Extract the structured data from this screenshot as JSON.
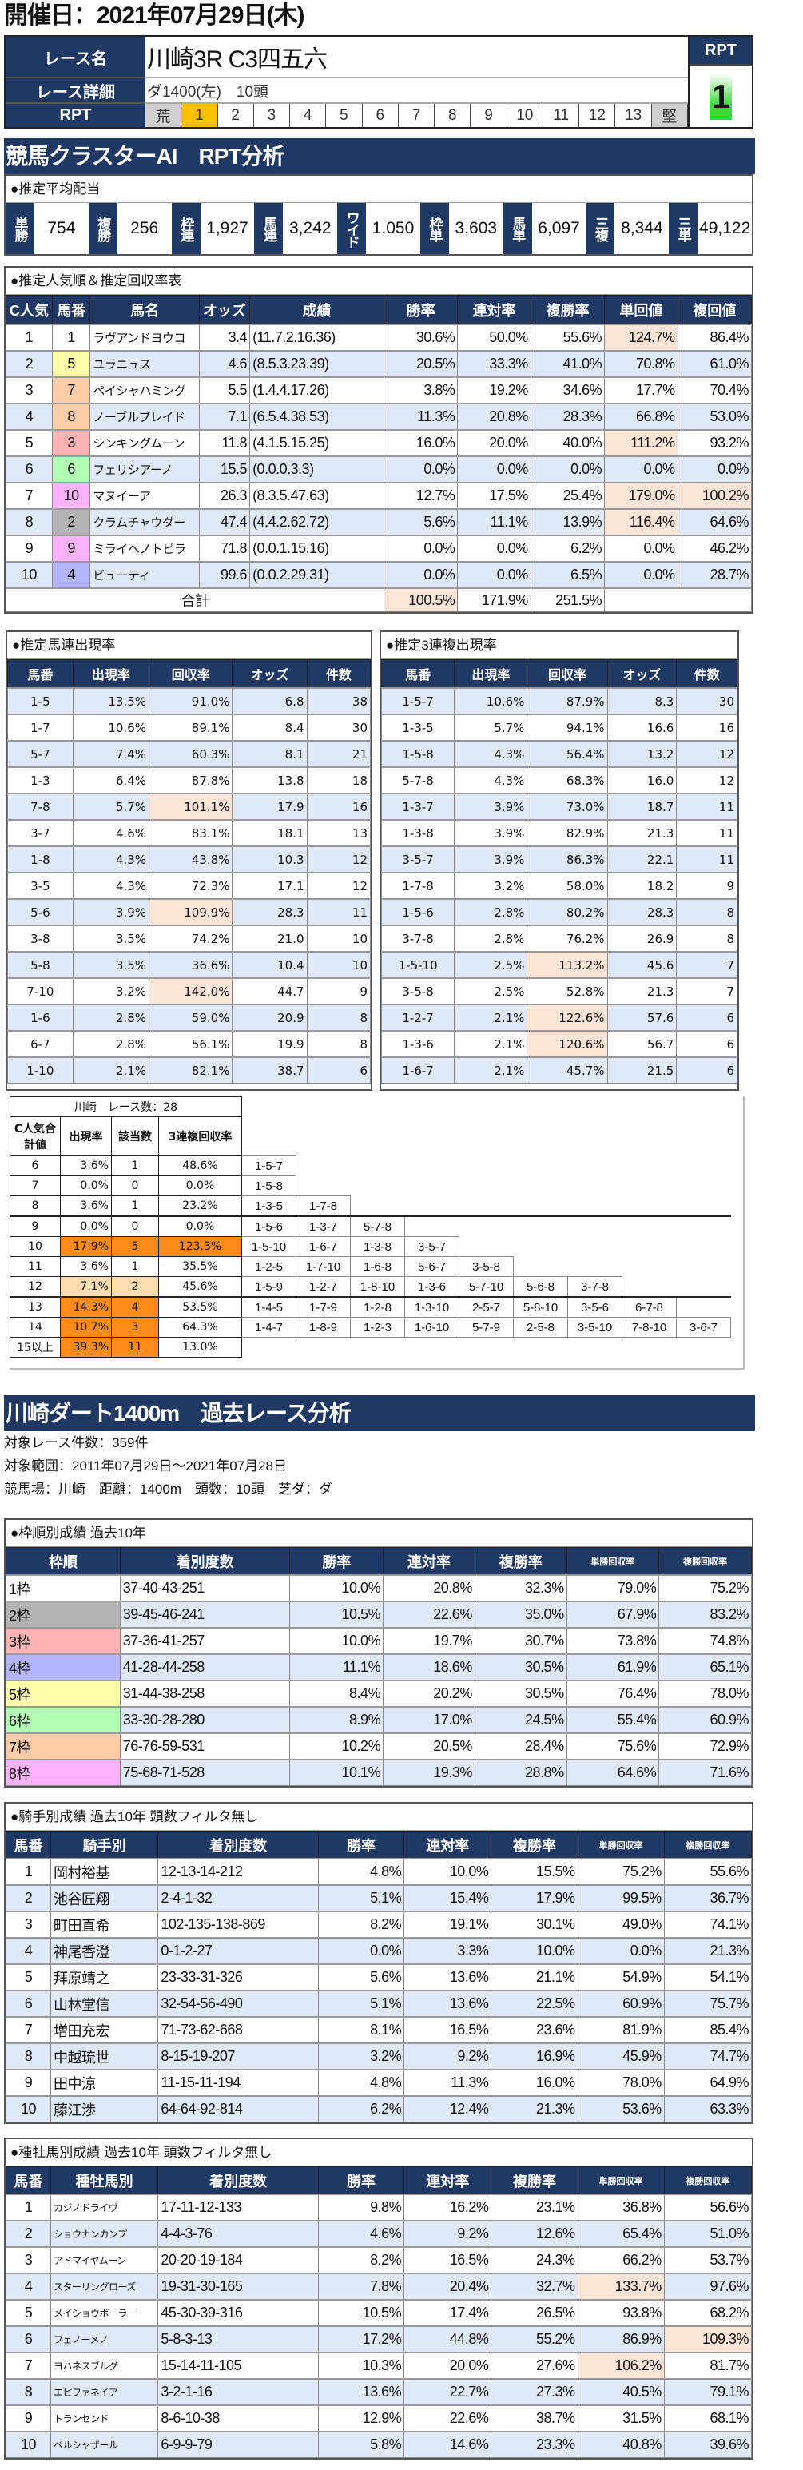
{
  "header": {
    "date_title": "開催日：2021年07月29日(木)"
  },
  "race": {
    "name_label": "レース名",
    "name": "川崎3R C3四五六",
    "detail_label": "レース詳細",
    "detail": "ダ1400(左)　10頭",
    "rpt_label": "RPT",
    "rpt_scale": [
      "荒",
      "1",
      "2",
      "3",
      "4",
      "5",
      "6",
      "7",
      "8",
      "9",
      "10",
      "11",
      "12",
      "13",
      "堅"
    ],
    "rpt_selected": "1",
    "rpt_value_label": "RPT",
    "rpt_value": "1"
  },
  "colors": {
    "navy": "#203864",
    "highlight": "#fce4d6",
    "orange": "#ff8c1a",
    "rpt_selected": "#ffc000",
    "rpt_green": "#39d839"
  },
  "frame_colors": {
    "1": "#ffffff",
    "2": "#b3b3b3",
    "3": "#ffb3b3",
    "4": "#b3b3ff",
    "5": "#ffffab",
    "6": "#b3ffb3",
    "7": "#ffcca8",
    "8": "#ffb3ff"
  },
  "horse_frames": {
    "1": "1",
    "2": "2",
    "3": "3",
    "4": "4",
    "5": "5",
    "6": "6",
    "7": "7",
    "8": "7",
    "9": "8",
    "10": "8"
  },
  "ai_section": {
    "title": "競馬クラスターAI　RPT分析"
  },
  "payout": {
    "title": "●推定平均配当",
    "items": [
      {
        "label": "単勝",
        "value": "754"
      },
      {
        "label": "複勝",
        "value": "256"
      },
      {
        "label": "枠連",
        "value": "1,927"
      },
      {
        "label": "馬連",
        "value": "3,242"
      },
      {
        "label": "ワイド",
        "value": "1,050"
      },
      {
        "label": "枠単",
        "value": "3,603"
      },
      {
        "label": "馬単",
        "value": "6,097"
      },
      {
        "label": "三複",
        "value": "8,344"
      },
      {
        "label": "三単",
        "value": "49,122"
      }
    ]
  },
  "popularity": {
    "title": "●推定人気順＆推定回収率表",
    "columns": [
      "C人気",
      "馬番",
      "馬名",
      "オッズ",
      "成績",
      "勝率",
      "連対率",
      "複勝率",
      "単回値",
      "複回値"
    ],
    "rows": [
      [
        "1",
        "1",
        "ラヴアンドヨウコ",
        "3.4",
        "(11.7.2.16.36)",
        "30.6%",
        "50.0%",
        "55.6%",
        "124.7%",
        "86.4%"
      ],
      [
        "2",
        "5",
        "ユラニュス",
        "4.6",
        "(8.5.3.23.39)",
        "20.5%",
        "33.3%",
        "41.0%",
        "70.8%",
        "61.0%"
      ],
      [
        "3",
        "7",
        "ペイシャハミング",
        "5.5",
        "(1.4.4.17.26)",
        "3.8%",
        "19.2%",
        "34.6%",
        "17.7%",
        "70.4%"
      ],
      [
        "4",
        "8",
        "ノーブルブレイド",
        "7.1",
        "(6.5.4.38.53)",
        "11.3%",
        "20.8%",
        "28.3%",
        "66.8%",
        "53.0%"
      ],
      [
        "5",
        "3",
        "シンキングムーン",
        "11.8",
        "(4.1.5.15.25)",
        "16.0%",
        "20.0%",
        "40.0%",
        "111.2%",
        "93.2%"
      ],
      [
        "6",
        "6",
        "フェリシアーノ",
        "15.5",
        "(0.0.0.3.3)",
        "0.0%",
        "0.0%",
        "0.0%",
        "0.0%",
        "0.0%"
      ],
      [
        "7",
        "10",
        "マヌイーア",
        "26.3",
        "(8.3.5.47.63)",
        "12.7%",
        "17.5%",
        "25.4%",
        "179.0%",
        "100.2%"
      ],
      [
        "8",
        "2",
        "クラムチャウダー",
        "47.4",
        "(4.4.2.62.72)",
        "5.6%",
        "11.1%",
        "13.9%",
        "116.4%",
        "64.6%"
      ],
      [
        "9",
        "9",
        "ミライヘノトビラ",
        "71.8",
        "(0.0.1.15.16)",
        "0.0%",
        "0.0%",
        "6.2%",
        "0.0%",
        "46.2%"
      ],
      [
        "10",
        "4",
        "ビューティ",
        "99.6",
        "(0.0.2.29.31)",
        "0.0%",
        "0.0%",
        "6.5%",
        "0.0%",
        "28.7%"
      ]
    ],
    "total": {
      "label": "合計",
      "win": "100.5%",
      "quinella": "171.9%",
      "show": "251.5%"
    }
  },
  "umaren": {
    "title": "●推定馬連出現率",
    "columns": [
      "馬番",
      "出現率",
      "回収率",
      "オッズ",
      "件数"
    ],
    "rows": [
      [
        "1-5",
        "13.5%",
        "91.0%",
        "6.8",
        "38"
      ],
      [
        "1-7",
        "10.6%",
        "89.1%",
        "8.4",
        "30"
      ],
      [
        "5-7",
        "7.4%",
        "60.3%",
        "8.1",
        "21"
      ],
      [
        "1-3",
        "6.4%",
        "87.8%",
        "13.8",
        "18"
      ],
      [
        "7-8",
        "5.7%",
        "101.1%",
        "17.9",
        "16"
      ],
      [
        "3-7",
        "4.6%",
        "83.1%",
        "18.1",
        "13"
      ],
      [
        "1-8",
        "4.3%",
        "43.8%",
        "10.3",
        "12"
      ],
      [
        "3-5",
        "4.3%",
        "72.3%",
        "17.1",
        "12"
      ],
      [
        "5-6",
        "3.9%",
        "109.9%",
        "28.3",
        "11"
      ],
      [
        "3-8",
        "3.5%",
        "74.2%",
        "21.0",
        "10"
      ],
      [
        "5-8",
        "3.5%",
        "36.6%",
        "10.4",
        "10"
      ],
      [
        "7-10",
        "3.2%",
        "142.0%",
        "44.7",
        "9"
      ],
      [
        "1-6",
        "2.8%",
        "59.0%",
        "20.9",
        "8"
      ],
      [
        "6-7",
        "2.8%",
        "56.1%",
        "19.9",
        "8"
      ],
      [
        "1-10",
        "2.1%",
        "82.1%",
        "38.7",
        "6"
      ]
    ]
  },
  "sanrenpuku": {
    "title": "●推定3連複出現率",
    "columns": [
      "馬番",
      "出現率",
      "回収率",
      "オッズ",
      "件数"
    ],
    "rows": [
      [
        "1-5-7",
        "10.6%",
        "87.9%",
        "8.3",
        "30"
      ],
      [
        "1-3-5",
        "5.7%",
        "94.1%",
        "16.6",
        "16"
      ],
      [
        "1-5-8",
        "4.3%",
        "56.4%",
        "13.2",
        "12"
      ],
      [
        "5-7-8",
        "4.3%",
        "68.3%",
        "16.0",
        "12"
      ],
      [
        "1-3-7",
        "3.9%",
        "73.0%",
        "18.7",
        "11"
      ],
      [
        "1-3-8",
        "3.9%",
        "82.9%",
        "21.3",
        "11"
      ],
      [
        "3-5-7",
        "3.9%",
        "86.3%",
        "22.1",
        "11"
      ],
      [
        "1-7-8",
        "3.2%",
        "58.0%",
        "18.2",
        "9"
      ],
      [
        "1-5-6",
        "2.8%",
        "80.2%",
        "28.3",
        "8"
      ],
      [
        "3-7-8",
        "2.8%",
        "76.2%",
        "26.9",
        "8"
      ],
      [
        "1-5-10",
        "2.5%",
        "113.2%",
        "45.6",
        "7"
      ],
      [
        "3-5-8",
        "2.5%",
        "52.8%",
        "21.3",
        "7"
      ],
      [
        "1-2-7",
        "2.1%",
        "122.6%",
        "57.6",
        "6"
      ],
      [
        "1-3-6",
        "2.1%",
        "120.6%",
        "56.7",
        "6"
      ],
      [
        "1-6-7",
        "2.1%",
        "45.7%",
        "21.5",
        "6"
      ]
    ]
  },
  "cluster": {
    "title": "川崎　レース数：28",
    "columns": [
      "C人気合計値",
      "出現率",
      "該当数",
      "3連複回収率"
    ],
    "rows": [
      {
        "sum": "6",
        "rate": "3.6%",
        "count": "1",
        "ret": "48.6%",
        "hl": "",
        "hl_ret": false,
        "combos": [
          "1-5-7"
        ]
      },
      {
        "sum": "7",
        "rate": "0.0%",
        "count": "0",
        "ret": "0.0%",
        "hl": "",
        "hl_ret": false,
        "combos": [
          "1-5-8"
        ]
      },
      {
        "sum": "8",
        "rate": "3.6%",
        "count": "1",
        "ret": "23.2%",
        "hl": "",
        "hl_ret": false,
        "combos": [
          "1-3-5",
          "1-7-8"
        ]
      },
      {
        "sum": "9",
        "rate": "0.0%",
        "count": "0",
        "ret": "0.0%",
        "hl": "",
        "hl_ret": false,
        "combos": [
          "1-5-6",
          "1-3-7",
          "5-7-8"
        ]
      },
      {
        "sum": "10",
        "rate": "17.9%",
        "count": "5",
        "ret": "123.3%",
        "hl": "strong",
        "hl_ret": true,
        "combos": [
          "1-5-10",
          "1-6-7",
          "1-3-8",
          "3-5-7"
        ]
      },
      {
        "sum": "11",
        "rate": "3.6%",
        "count": "1",
        "ret": "35.5%",
        "hl": "",
        "hl_ret": false,
        "combos": [
          "1-2-5",
          "1-7-10",
          "1-6-8",
          "5-6-7",
          "3-5-8"
        ]
      },
      {
        "sum": "12",
        "rate": "7.1%",
        "count": "2",
        "ret": "45.6%",
        "hl": "light",
        "hl_ret": false,
        "combos": [
          "1-5-9",
          "1-2-7",
          "1-8-10",
          "1-3-6",
          "5-7-10",
          "5-6-8",
          "3-7-8"
        ]
      },
      {
        "sum": "13",
        "rate": "14.3%",
        "count": "4",
        "ret": "53.5%",
        "hl": "strong",
        "hl_ret": false,
        "combos": [
          "1-4-5",
          "1-7-9",
          "1-2-8",
          "1-3-10",
          "2-5-7",
          "5-8-10",
          "3-5-6",
          "6-7-8"
        ]
      },
      {
        "sum": "14",
        "rate": "10.7%",
        "count": "3",
        "ret": "64.3%",
        "hl": "strong",
        "hl_ret": false,
        "combos": [
          "1-4-7",
          "1-8-9",
          "1-2-3",
          "1-6-10",
          "5-7-9",
          "2-5-8",
          "3-5-10",
          "7-8-10",
          "3-6-7"
        ]
      },
      {
        "sum": "15以上",
        "rate": "39.3%",
        "count": "11",
        "ret": "13.0%",
        "hl": "strong",
        "hl_ret": false,
        "combos": []
      }
    ]
  },
  "past": {
    "title": "川崎ダート1400m　過去レース分析",
    "lines": [
      "対象レース件数：359件",
      "対象範囲：2011年07月29日～2021年07月28日",
      "競馬場：川崎　距離：1400m　頭数：10頭　芝ダ：ダ"
    ]
  },
  "waku": {
    "title": "●枠順別成績 過去10年",
    "columns": [
      "枠順",
      "着別度数",
      "勝率",
      "連対率",
      "複勝率",
      "単勝回収率",
      "複勝回収率"
    ],
    "rows": [
      [
        "1枠",
        "37-40-43-251",
        "10.0%",
        "20.8%",
        "32.3%",
        "79.0%",
        "75.2%"
      ],
      [
        "2枠",
        "39-45-46-241",
        "10.5%",
        "22.6%",
        "35.0%",
        "67.9%",
        "83.2%"
      ],
      [
        "3枠",
        "37-36-41-257",
        "10.0%",
        "19.7%",
        "30.7%",
        "73.8%",
        "74.8%"
      ],
      [
        "4枠",
        "41-28-44-258",
        "11.1%",
        "18.6%",
        "30.5%",
        "61.9%",
        "65.1%"
      ],
      [
        "5枠",
        "31-44-38-258",
        "8.4%",
        "20.2%",
        "30.5%",
        "76.4%",
        "78.0%"
      ],
      [
        "6枠",
        "33-30-28-280",
        "8.9%",
        "17.0%",
        "24.5%",
        "55.4%",
        "60.9%"
      ],
      [
        "7枠",
        "76-76-59-531",
        "10.2%",
        "20.5%",
        "28.4%",
        "75.6%",
        "72.9%"
      ],
      [
        "8枠",
        "75-68-71-528",
        "10.1%",
        "19.3%",
        "28.8%",
        "64.6%",
        "71.6%"
      ]
    ]
  },
  "jockey": {
    "title": "●騎手別成績 過去10年 頭数フィルタ無し",
    "columns": [
      "馬番",
      "騎手別",
      "着別度数",
      "勝率",
      "連対率",
      "複勝率",
      "単勝回収率",
      "複勝回収率"
    ],
    "rows": [
      [
        "1",
        "岡村裕基",
        "12-13-14-212",
        "4.8%",
        "10.0%",
        "15.5%",
        "75.2%",
        "55.6%"
      ],
      [
        "2",
        "池谷匠翔",
        "2-4-1-32",
        "5.1%",
        "15.4%",
        "17.9%",
        "99.5%",
        "36.7%"
      ],
      [
        "3",
        "町田直希",
        "102-135-138-869",
        "8.2%",
        "19.1%",
        "30.1%",
        "49.0%",
        "74.1%"
      ],
      [
        "4",
        "神尾香澄",
        "0-1-2-27",
        "0.0%",
        "3.3%",
        "10.0%",
        "0.0%",
        "21.3%"
      ],
      [
        "5",
        "拜原靖之",
        "23-33-31-326",
        "5.6%",
        "13.6%",
        "21.1%",
        "54.9%",
        "54.1%"
      ],
      [
        "6",
        "山林堂信",
        "32-54-56-490",
        "5.1%",
        "13.6%",
        "22.5%",
        "60.9%",
        "75.7%"
      ],
      [
        "7",
        "増田充宏",
        "71-73-62-668",
        "8.1%",
        "16.5%",
        "23.6%",
        "81.9%",
        "85.4%"
      ],
      [
        "8",
        "中越琉世",
        "8-15-19-207",
        "3.2%",
        "9.2%",
        "16.9%",
        "45.9%",
        "74.7%"
      ],
      [
        "9",
        "田中涼",
        "11-15-11-194",
        "4.8%",
        "11.3%",
        "16.0%",
        "78.0%",
        "64.9%"
      ],
      [
        "10",
        "藤江渉",
        "64-64-92-814",
        "6.2%",
        "12.4%",
        "21.3%",
        "53.6%",
        "63.3%"
      ]
    ]
  },
  "sire": {
    "title": "●種牡馬別成績 過去10年 頭数フィルタ無し",
    "columns": [
      "馬番",
      "種牡馬別",
      "着別度数",
      "勝率",
      "連対率",
      "複勝率",
      "単勝回収率",
      "複勝回収率"
    ],
    "rows": [
      [
        "1",
        "カジノドライヴ",
        "17-11-12-133",
        "9.8%",
        "16.2%",
        "23.1%",
        "36.8%",
        "56.6%"
      ],
      [
        "2",
        "ショウナンカンプ",
        "4-4-3-76",
        "4.6%",
        "9.2%",
        "12.6%",
        "65.4%",
        "51.0%"
      ],
      [
        "3",
        "アドマイヤムーン",
        "20-20-19-184",
        "8.2%",
        "16.5%",
        "24.3%",
        "66.2%",
        "53.7%"
      ],
      [
        "4",
        "スターリングローズ",
        "19-31-30-165",
        "7.8%",
        "20.4%",
        "32.7%",
        "133.7%",
        "97.6%"
      ],
      [
        "5",
        "メイショウボーラー",
        "45-30-39-316",
        "10.5%",
        "17.4%",
        "26.5%",
        "93.8%",
        "68.2%"
      ],
      [
        "6",
        "フェノーメノ",
        "5-8-3-13",
        "17.2%",
        "44.8%",
        "55.2%",
        "86.9%",
        "109.3%"
      ],
      [
        "7",
        "ヨハネスブルグ",
        "15-14-11-105",
        "10.3%",
        "20.0%",
        "27.6%",
        "106.2%",
        "81.7%"
      ],
      [
        "8",
        "エピファネイア",
        "3-2-1-16",
        "13.6%",
        "22.7%",
        "27.3%",
        "40.5%",
        "79.1%"
      ],
      [
        "9",
        "トランセンド",
        "8-6-10-38",
        "12.9%",
        "22.6%",
        "38.7%",
        "31.5%",
        "68.1%"
      ],
      [
        "10",
        "ベルシャザール",
        "6-9-9-79",
        "5.8%",
        "14.6%",
        "23.3%",
        "40.8%",
        "39.6%"
      ]
    ]
  }
}
